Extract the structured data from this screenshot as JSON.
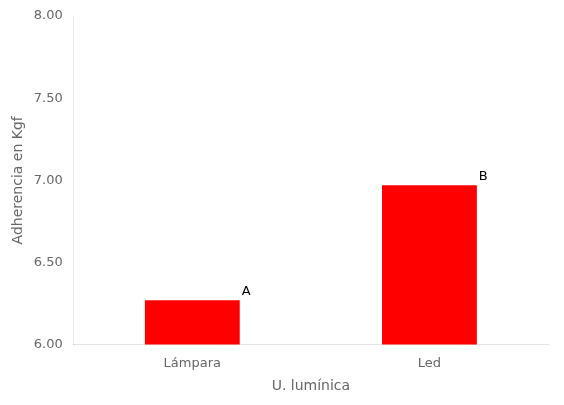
{
  "chart_data": {
    "type": "bar",
    "categories": [
      "Lámpara",
      "Led"
    ],
    "values": [
      6.27,
      6.97
    ],
    "color": "#ff0000",
    "xlabel": "U. lumínica",
    "ylabel": "Adherencia en Kgf",
    "ylim": [
      6.0,
      8.0
    ],
    "yticks": [
      {
        "value": 6.0,
        "label": "6.00"
      },
      {
        "value": 6.5,
        "label": "6.50"
      },
      {
        "value": 7.0,
        "label": "7.00"
      },
      {
        "value": 7.5,
        "label": "7.50"
      },
      {
        "value": 8.0,
        "label": "8.00"
      }
    ],
    "annotations": [
      "A",
      "B"
    ],
    "grid": false
  }
}
